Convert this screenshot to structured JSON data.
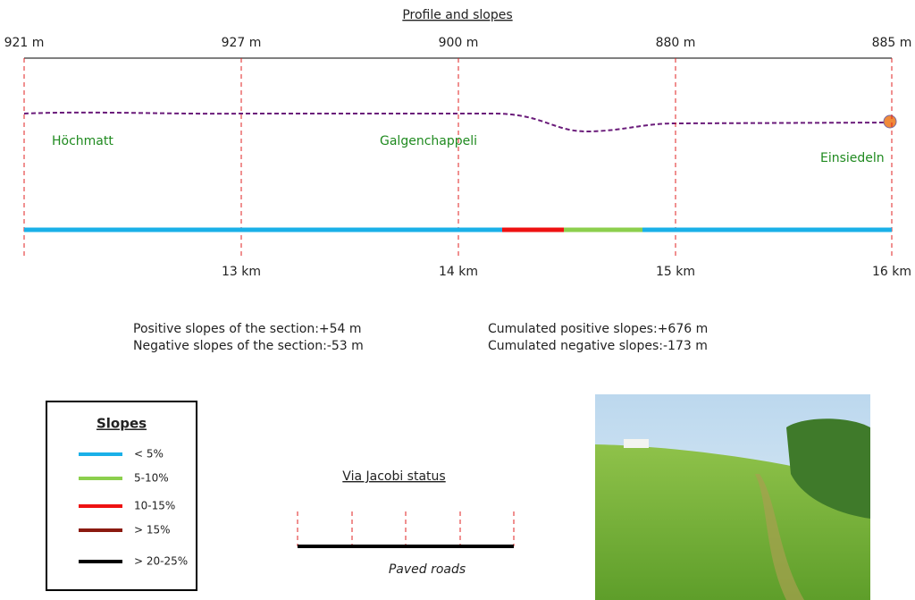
{
  "title": "Profile and slopes",
  "elevations": [
    "921 m",
    "927 m",
    "900 m",
    "880 m",
    "885 m"
  ],
  "distances": [
    "13 km",
    "14 km",
    "15 km",
    "16 km"
  ],
  "places": [
    "Höchmatt",
    "Galgenchappeli",
    "Einsiedeln"
  ],
  "stats": [
    "Positive slopes of the section:+54 m",
    "Negative slopes of the section:-53 m",
    "Cumulated positive slopes:+676 m",
    "Cumulated negative slopes:-173 m"
  ],
  "legend": {
    "title": "Slopes",
    "items": [
      {
        "label": "< 5%",
        "color": "#1ab0e8"
      },
      {
        "label": "5-10%",
        "color": "#8ccf4d"
      },
      {
        "label": "10-15%",
        "color": "#ee1111"
      },
      {
        "label": "> 15%",
        "color": "#8b1a10"
      },
      {
        "label": "> 20-25%",
        "color": "#000000"
      }
    ]
  },
  "status": {
    "title": "Via Jacobi status",
    "label": "Paved roads"
  }
}
